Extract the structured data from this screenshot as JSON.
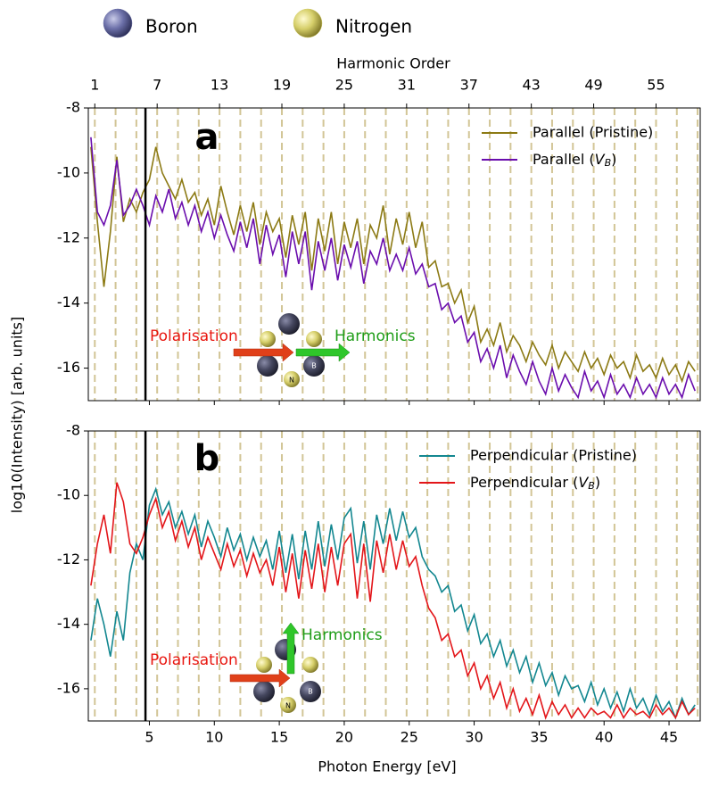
{
  "species": [
    {
      "name": "Boron",
      "color": "#6b6fa8"
    },
    {
      "name": "Nitrogen",
      "color": "#d6cf6a"
    }
  ],
  "chart_data": [
    {
      "type": "line",
      "panel": "a",
      "ylabel": "log10(Intensity) [arb. units]",
      "x2label": "Harmonic Order",
      "xlim": [
        0.3,
        47.4
      ],
      "ylim": [
        -17,
        -8
      ],
      "yticks": [
        -8,
        -10,
        -12,
        -14,
        -16
      ],
      "xticks": [
        5,
        10,
        15,
        20,
        25,
        30,
        35,
        40,
        45
      ],
      "x2lim": [
        0.375,
        59.25
      ],
      "x2ticks": [
        1,
        7,
        13,
        19,
        25,
        31,
        37,
        43,
        49,
        55
      ],
      "vlines": [
        4.7
      ],
      "legend": "upper right",
      "annotations": [
        "Polarisation",
        "Harmonics",
        "N",
        "B"
      ],
      "x": [
        0.5,
        1,
        1.5,
        2,
        2.5,
        3,
        3.5,
        4,
        4.5,
        5,
        5.5,
        6,
        6.5,
        7,
        7.5,
        8,
        8.5,
        9,
        9.5,
        10,
        10.5,
        11,
        11.5,
        12,
        12.5,
        13,
        13.5,
        14,
        14.5,
        15,
        15.5,
        16,
        16.5,
        17,
        17.5,
        18,
        18.5,
        19,
        19.5,
        20,
        20.5,
        21,
        21.5,
        22,
        22.5,
        23,
        23.5,
        24,
        24.5,
        25,
        25.5,
        26,
        26.5,
        27,
        27.5,
        28,
        28.5,
        29,
        29.5,
        30,
        30.5,
        31,
        31.5,
        32,
        32.5,
        33,
        33.5,
        34,
        34.5,
        35,
        35.5,
        36,
        36.5,
        37,
        37.5,
        38,
        38.5,
        39,
        39.5,
        40,
        40.5,
        41,
        41.5,
        42,
        42.5,
        43,
        43.5,
        44,
        44.5,
        45,
        45.5,
        46,
        46.5,
        47
      ],
      "series": [
        {
          "name": "Parallel (Pristine)",
          "color": "#8c7a14",
          "values": [
            -9.2,
            -11.5,
            -13.5,
            -11.8,
            -9.5,
            -11.5,
            -10.8,
            -11.2,
            -10.6,
            -10.2,
            -9.2,
            -10.0,
            -10.4,
            -10.8,
            -10.2,
            -10.9,
            -10.6,
            -11.3,
            -10.8,
            -11.6,
            -10.4,
            -11.2,
            -11.9,
            -11.0,
            -11.8,
            -10.9,
            -12.2,
            -11.2,
            -11.8,
            -11.4,
            -12.6,
            -11.3,
            -12.2,
            -11.2,
            -13.0,
            -11.4,
            -12.4,
            -11.2,
            -12.8,
            -11.5,
            -12.3,
            -11.4,
            -12.8,
            -11.6,
            -12.0,
            -11.0,
            -12.5,
            -11.4,
            -12.2,
            -11.2,
            -12.3,
            -11.5,
            -12.9,
            -12.7,
            -13.5,
            -13.4,
            -14.0,
            -13.6,
            -14.6,
            -14.1,
            -15.2,
            -14.8,
            -15.3,
            -14.6,
            -15.5,
            -15.0,
            -15.3,
            -15.8,
            -15.2,
            -15.6,
            -15.9,
            -15.3,
            -16.0,
            -15.5,
            -15.8,
            -16.1,
            -15.5,
            -16.0,
            -15.7,
            -16.2,
            -15.6,
            -16.0,
            -15.8,
            -16.3,
            -15.6,
            -16.1,
            -15.9,
            -16.3,
            -15.7,
            -16.2,
            -15.9,
            -16.4,
            -15.8,
            -16.1
          ]
        },
        {
          "name": "Parallel (V_B)",
          "color": "#6a0dad",
          "values": [
            -8.9,
            -11.2,
            -11.6,
            -11.0,
            -9.6,
            -11.3,
            -11.0,
            -10.5,
            -11.0,
            -11.6,
            -10.7,
            -11.2,
            -10.5,
            -11.4,
            -10.9,
            -11.6,
            -11.0,
            -11.8,
            -11.2,
            -12.0,
            -11.3,
            -11.9,
            -12.4,
            -11.5,
            -12.3,
            -11.4,
            -12.8,
            -11.6,
            -12.5,
            -11.9,
            -13.2,
            -11.8,
            -12.8,
            -11.8,
            -13.6,
            -12.1,
            -13.0,
            -12.0,
            -13.3,
            -12.2,
            -12.9,
            -12.1,
            -13.4,
            -12.4,
            -12.8,
            -12.0,
            -13.0,
            -12.5,
            -13.0,
            -12.3,
            -13.1,
            -12.8,
            -13.5,
            -13.4,
            -14.2,
            -14.0,
            -14.6,
            -14.4,
            -15.2,
            -14.9,
            -15.8,
            -15.4,
            -16.0,
            -15.3,
            -16.3,
            -15.6,
            -16.1,
            -16.5,
            -15.8,
            -16.4,
            -16.8,
            -16.0,
            -16.7,
            -16.2,
            -16.6,
            -16.9,
            -16.1,
            -16.7,
            -16.4,
            -16.9,
            -16.2,
            -16.8,
            -16.5,
            -16.9,
            -16.3,
            -16.8,
            -16.5,
            -16.9,
            -16.3,
            -16.8,
            -16.5,
            -16.9,
            -16.2,
            -16.7
          ]
        }
      ]
    },
    {
      "type": "line",
      "panel": "b",
      "xlabel": "Photon Energy [eV]",
      "xlim": [
        0.3,
        47.4
      ],
      "ylim": [
        -17,
        -8
      ],
      "yticks": [
        -8,
        -10,
        -12,
        -14,
        -16
      ],
      "xticks": [
        5,
        10,
        15,
        20,
        25,
        30,
        35,
        40,
        45
      ],
      "x2lim": [
        0.375,
        59.25
      ],
      "vlines": [
        4.7
      ],
      "legend": "upper right",
      "annotations": [
        "Polarisation",
        "Harmonics",
        "N",
        "B"
      ],
      "x": [
        0.5,
        1,
        1.5,
        2,
        2.5,
        3,
        3.5,
        4,
        4.5,
        5,
        5.5,
        6,
        6.5,
        7,
        7.5,
        8,
        8.5,
        9,
        9.5,
        10,
        10.5,
        11,
        11.5,
        12,
        12.5,
        13,
        13.5,
        14,
        14.5,
        15,
        15.5,
        16,
        16.5,
        17,
        17.5,
        18,
        18.5,
        19,
        19.5,
        20,
        20.5,
        21,
        21.5,
        22,
        22.5,
        23,
        23.5,
        24,
        24.5,
        25,
        25.5,
        26,
        26.5,
        27,
        27.5,
        28,
        28.5,
        29,
        29.5,
        30,
        30.5,
        31,
        31.5,
        32,
        32.5,
        33,
        33.5,
        34,
        34.5,
        35,
        35.5,
        36,
        36.5,
        37,
        37.5,
        38,
        38.5,
        39,
        39.5,
        40,
        40.5,
        41,
        41.5,
        42,
        42.5,
        43,
        43.5,
        44,
        44.5,
        45,
        45.5,
        46,
        46.5,
        47
      ],
      "series": [
        {
          "name": "Perpendicular (Pristine)",
          "color": "#138790",
          "values": [
            -14.5,
            -13.2,
            -14.0,
            -15.0,
            -13.6,
            -14.5,
            -12.4,
            -11.5,
            -12.0,
            -10.3,
            -9.8,
            -10.6,
            -10.2,
            -11.0,
            -10.5,
            -11.2,
            -10.6,
            -11.6,
            -10.8,
            -11.3,
            -11.9,
            -11.0,
            -11.7,
            -11.2,
            -12.0,
            -11.3,
            -11.9,
            -11.4,
            -12.3,
            -11.1,
            -12.4,
            -11.2,
            -12.6,
            -11.1,
            -12.3,
            -10.8,
            -12.2,
            -10.9,
            -12.0,
            -10.7,
            -10.4,
            -12.1,
            -10.8,
            -12.3,
            -10.6,
            -11.5,
            -10.4,
            -11.4,
            -10.5,
            -11.3,
            -11.0,
            -11.9,
            -12.3,
            -12.5,
            -13.0,
            -12.8,
            -13.6,
            -13.4,
            -14.2,
            -13.7,
            -14.6,
            -14.3,
            -15.0,
            -14.5,
            -15.3,
            -14.8,
            -15.5,
            -15.0,
            -15.8,
            -15.2,
            -15.9,
            -15.5,
            -16.2,
            -15.6,
            -16.0,
            -15.9,
            -16.4,
            -15.8,
            -16.5,
            -16.0,
            -16.6,
            -16.1,
            -16.7,
            -16.0,
            -16.6,
            -16.3,
            -16.8,
            -16.2,
            -16.7,
            -16.4,
            -16.9,
            -16.3,
            -16.8,
            -16.5
          ]
        },
        {
          "name": "Perpendicular (V_B)",
          "color": "#e3161a",
          "values": [
            -12.8,
            -11.5,
            -10.6,
            -11.8,
            -9.6,
            -10.2,
            -11.5,
            -11.8,
            -11.3,
            -10.6,
            -10.1,
            -11.0,
            -10.5,
            -11.4,
            -10.8,
            -11.6,
            -11.0,
            -12.0,
            -11.3,
            -11.8,
            -12.3,
            -11.5,
            -12.2,
            -11.7,
            -12.5,
            -11.8,
            -12.4,
            -12.0,
            -12.8,
            -11.6,
            -13.0,
            -11.8,
            -13.2,
            -11.7,
            -12.9,
            -11.5,
            -13.0,
            -11.6,
            -12.8,
            -11.5,
            -11.2,
            -13.2,
            -11.5,
            -13.3,
            -11.4,
            -12.4,
            -11.2,
            -12.3,
            -11.4,
            -12.2,
            -11.9,
            -12.8,
            -13.5,
            -13.8,
            -14.5,
            -14.3,
            -15.0,
            -14.8,
            -15.6,
            -15.2,
            -16.0,
            -15.6,
            -16.3,
            -15.8,
            -16.6,
            -16.0,
            -16.7,
            -16.3,
            -16.8,
            -16.2,
            -16.9,
            -16.4,
            -16.8,
            -16.5,
            -16.9,
            -16.6,
            -16.9,
            -16.6,
            -16.8,
            -16.7,
            -16.9,
            -16.5,
            -16.9,
            -16.6,
            -16.8,
            -16.7,
            -16.9,
            -16.5,
            -16.8,
            -16.6,
            -16.9,
            -16.4,
            -16.8,
            -16.6
          ]
        }
      ]
    }
  ]
}
